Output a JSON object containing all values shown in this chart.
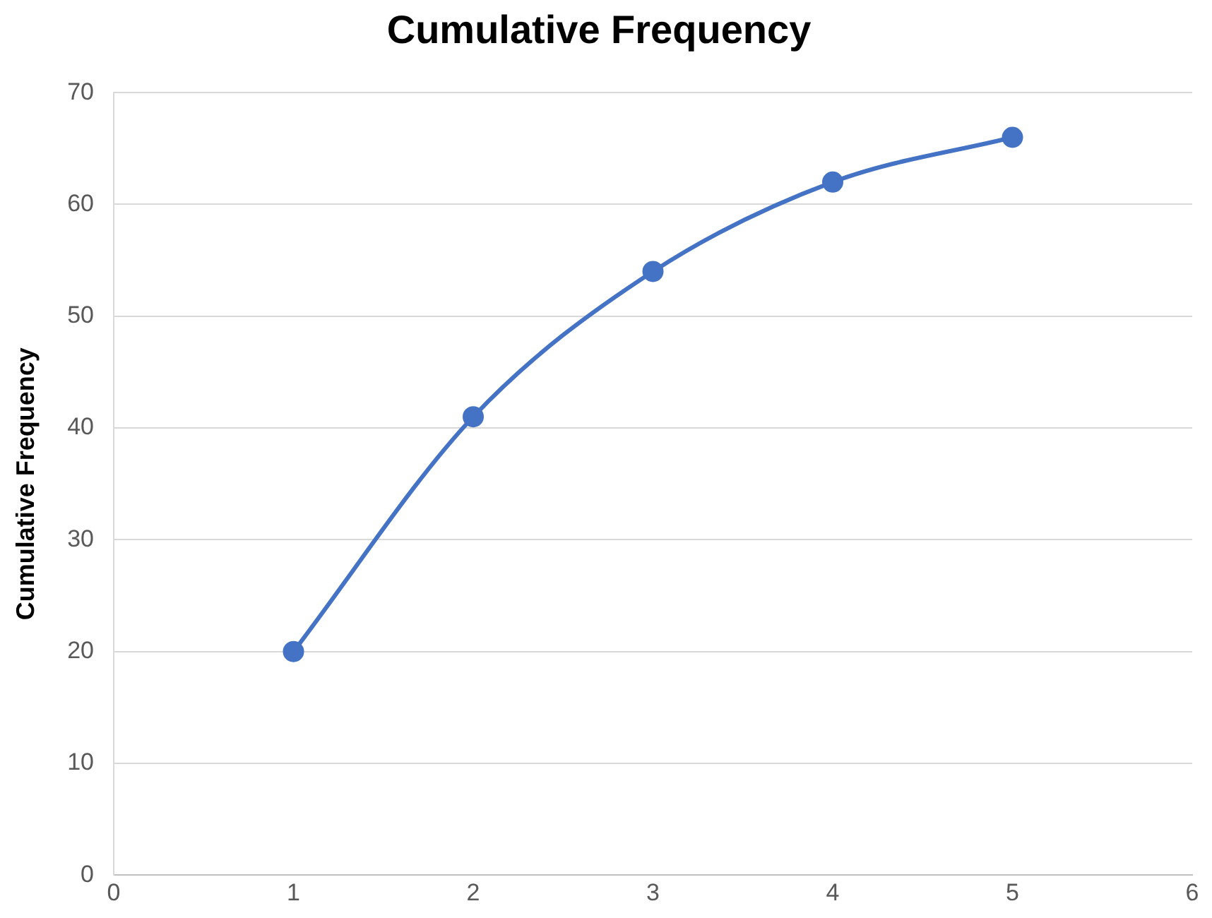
{
  "chart_data": {
    "type": "line",
    "title": "Cumulative Frequency",
    "ylabel": "Cumulative Frequency",
    "x": [
      1,
      2,
      3,
      4,
      5
    ],
    "series": [
      {
        "color": "#4472c4",
        "values": [
          20,
          41,
          54,
          62,
          66
        ]
      }
    ],
    "xlim": [
      0,
      6
    ],
    "xticks": [
      0,
      1,
      2,
      3,
      4,
      5,
      6
    ],
    "ylim": [
      0,
      70
    ],
    "yticks": [
      0,
      10,
      20,
      30,
      40,
      50,
      60,
      70
    ],
    "grid": "y",
    "legend": false,
    "marker": "circle",
    "line_style": "solid"
  }
}
